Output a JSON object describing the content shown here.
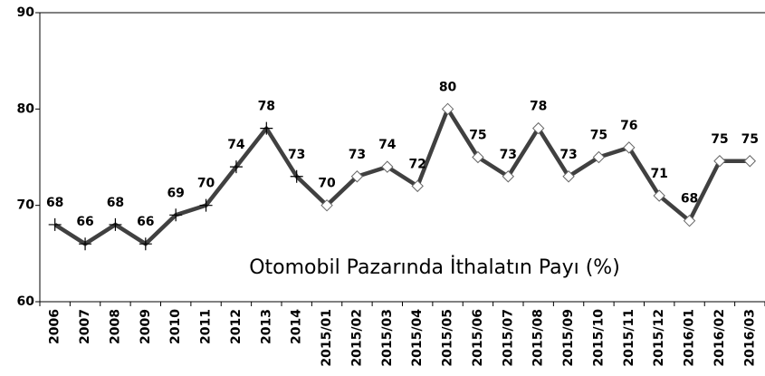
{
  "chart_data": {
    "type": "line",
    "title": "Otomobil Pazarında İthalatın Payı (%)",
    "categories": [
      "2006",
      "2007",
      "2008",
      "2009",
      "2010",
      "2011",
      "2012",
      "2013",
      "2014",
      "2015/01",
      "2015/02",
      "2015/03",
      "2015/04",
      "2015/05",
      "2015/06",
      "2015/07",
      "2015/08",
      "2015/09",
      "2015/10",
      "2015/11",
      "2015/12",
      "2016/01",
      "2016/02",
      "2016/03"
    ],
    "series": [
      {
        "name": "Otomobil Pazarında İthalatın Payı (%)",
        "color": "#404040",
        "values": [
          68,
          66,
          68,
          66,
          69,
          70,
          74,
          78,
          73,
          70,
          73,
          74,
          72,
          80,
          75,
          73,
          78,
          73,
          75,
          76,
          71,
          68.4,
          74.6,
          74.6
        ],
        "value_labels": [
          "68",
          "66",
          "68",
          "66",
          "69",
          "70",
          "74",
          "78",
          "73",
          "70",
          "73",
          "74",
          "72",
          "80",
          "75",
          "73",
          "78",
          "73",
          "75",
          "76",
          "71",
          "68",
          "75",
          "75"
        ],
        "markers": [
          "plus",
          "plus",
          "plus",
          "plus",
          "plus",
          "plus",
          "plus",
          "plus",
          "plus",
          "diamond",
          "diamond",
          "diamond",
          "diamond",
          "diamond",
          "diamond",
          "diamond",
          "diamond",
          "diamond",
          "diamond",
          "diamond",
          "diamond",
          "diamond",
          "diamond",
          "diamond"
        ]
      }
    ],
    "ylim": [
      60,
      90
    ],
    "yticks": [
      60,
      70,
      80,
      90
    ],
    "grid": false
  }
}
